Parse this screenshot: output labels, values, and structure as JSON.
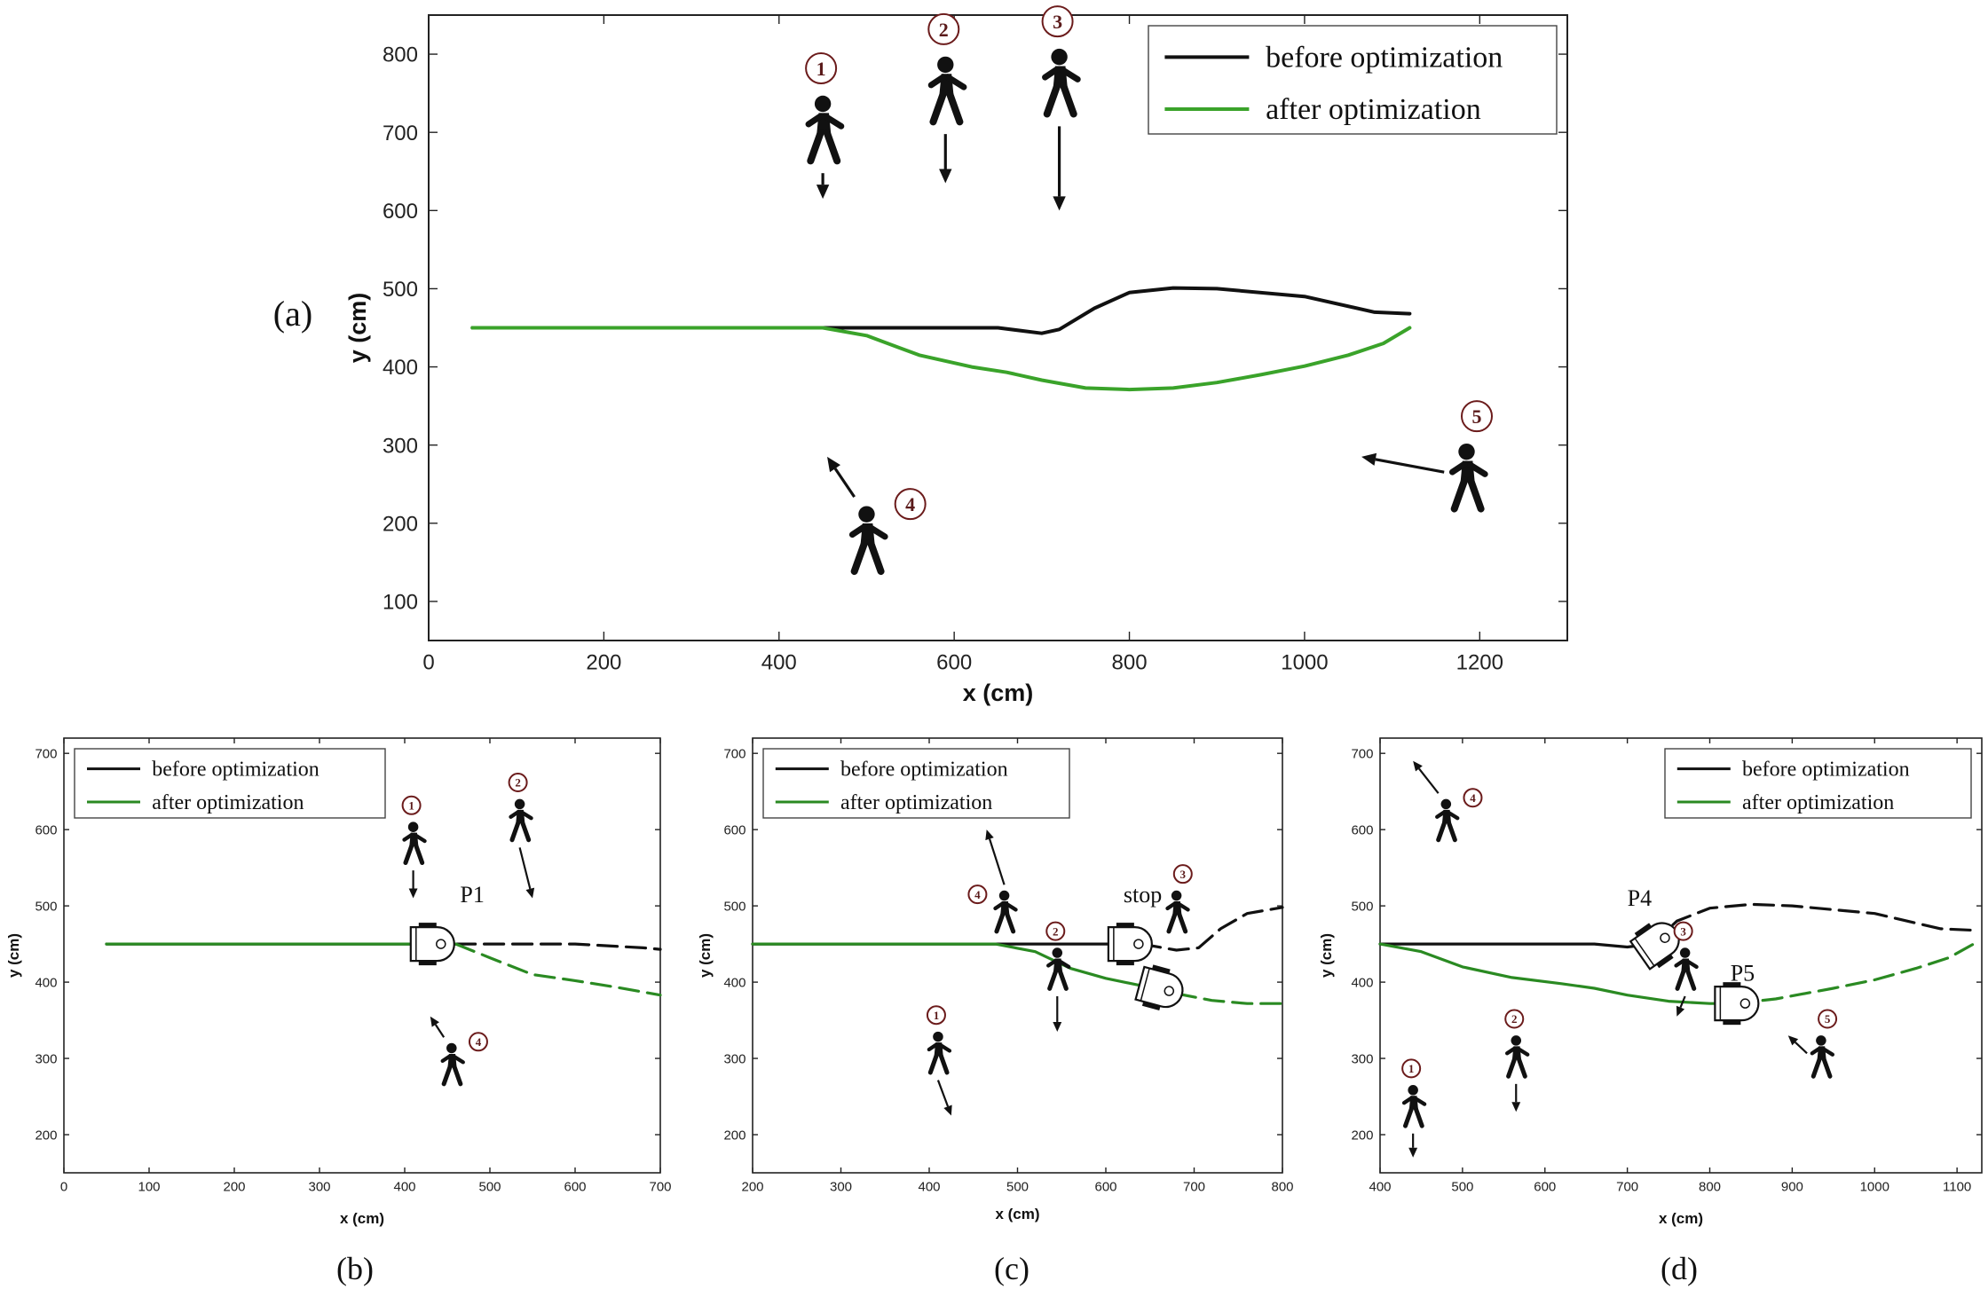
{
  "colors": {
    "before": "#111111",
    "after": "#3aa32a",
    "afterSmall": "#2a8a22",
    "marker": "#6b1b1b"
  },
  "chart_data": [
    {
      "id": "a",
      "panel_label": "(a)",
      "type": "line",
      "xlabel": "x (cm)",
      "ylabel": "y (cm)",
      "xlim": [
        0,
        1300
      ],
      "ylim": [
        50,
        850
      ],
      "xticks": [
        0,
        200,
        400,
        600,
        800,
        1000,
        1200
      ],
      "yticks": [
        100,
        200,
        300,
        400,
        500,
        600,
        700,
        800
      ],
      "legend": {
        "position": "top-right"
      },
      "series": [
        {
          "name": "before optimization",
          "color_key": "before",
          "segments": [
            {
              "style": "solid",
              "points": [
                [
                  50,
                  450
                ],
                [
                  450,
                  450
                ],
                [
                  650,
                  450
                ],
                [
                  700,
                  443
                ],
                [
                  720,
                  448
                ],
                [
                  760,
                  475
                ],
                [
                  800,
                  495
                ],
                [
                  850,
                  501
                ],
                [
                  900,
                  500
                ],
                [
                  1000,
                  490
                ],
                [
                  1080,
                  470
                ],
                [
                  1120,
                  468
                ]
              ]
            }
          ]
        },
        {
          "name": "after optimization",
          "color_key": "after",
          "segments": [
            {
              "style": "solid",
              "points": [
                [
                  50,
                  450
                ],
                [
                  450,
                  450
                ],
                [
                  500,
                  440
                ],
                [
                  560,
                  415
                ],
                [
                  620,
                  400
                ],
                [
                  660,
                  393
                ],
                [
                  700,
                  383
                ],
                [
                  750,
                  373
                ],
                [
                  800,
                  371
                ],
                [
                  850,
                  373
                ],
                [
                  900,
                  380
                ],
                [
                  950,
                  390
                ],
                [
                  1000,
                  401
                ],
                [
                  1050,
                  415
                ],
                [
                  1090,
                  430
                ],
                [
                  1120,
                  450
                ]
              ]
            }
          ]
        }
      ],
      "pedestrians": [
        {
          "id": "1",
          "x": 450,
          "y": 700,
          "arrow_to": [
            450,
            615
          ]
        },
        {
          "id": "2",
          "x": 590,
          "y": 750,
          "arrow_to": [
            590,
            635
          ]
        },
        {
          "id": "3",
          "x": 720,
          "y": 760,
          "arrow_to": [
            720,
            600
          ]
        },
        {
          "id": "4",
          "x": 500,
          "y": 175,
          "arrow_to": [
            455,
            285
          ],
          "label_side": "right"
        },
        {
          "id": "5",
          "x": 1185,
          "y": 255,
          "arrow_to": [
            1065,
            285
          ],
          "label_side": "top"
        }
      ],
      "robots": [],
      "annotations": []
    },
    {
      "id": "b",
      "panel_label": "(b)",
      "type": "line",
      "xlabel": "x (cm)",
      "ylabel": "y (cm)",
      "xlim": [
        0,
        700
      ],
      "ylim": [
        150,
        720
      ],
      "xticks": [
        0,
        100,
        200,
        300,
        400,
        500,
        600,
        700
      ],
      "yticks": [
        200,
        300,
        400,
        500,
        600,
        700
      ],
      "legend": {
        "position": "top-left"
      },
      "series": [
        {
          "name": "before optimization",
          "color_key": "before",
          "segments": [
            {
              "style": "solid",
              "points": [
                [
                  50,
                  450
                ],
                [
                  460,
                  450
                ]
              ]
            },
            {
              "style": "dashed",
              "points": [
                [
                  460,
                  450
                ],
                [
                  600,
                  450
                ],
                [
                  680,
                  445
                ],
                [
                  700,
                  443
                ]
              ]
            }
          ]
        },
        {
          "name": "after optimization",
          "color_key": "afterSmall",
          "segments": [
            {
              "style": "solid",
              "points": [
                [
                  50,
                  450
                ],
                [
                  460,
                  450
                ]
              ]
            },
            {
              "style": "dashed",
              "points": [
                [
                  460,
                  450
                ],
                [
                  500,
                  432
                ],
                [
                  550,
                  410
                ],
                [
                  600,
                  402
                ],
                [
                  650,
                  393
                ],
                [
                  700,
                  383
                ]
              ]
            }
          ]
        }
      ],
      "pedestrians": [
        {
          "id": "1",
          "x": 410,
          "y": 580,
          "arrow_to": [
            410,
            510
          ]
        },
        {
          "id": "2",
          "x": 535,
          "y": 610,
          "arrow_to": [
            550,
            510
          ]
        },
        {
          "id": "4",
          "x": 455,
          "y": 290,
          "arrow_to": [
            430,
            355
          ],
          "label_side": "right"
        }
      ],
      "robots": [
        {
          "x": 430,
          "y": 450,
          "angle": 0
        }
      ],
      "annotations": [
        {
          "text": "P1",
          "x": 465,
          "y": 505
        }
      ]
    },
    {
      "id": "c",
      "panel_label": "(c)",
      "type": "line",
      "xlabel": "x (cm)",
      "ylabel": "y (cm)",
      "xlim": [
        200,
        800
      ],
      "ylim": [
        150,
        720
      ],
      "xticks": [
        200,
        300,
        400,
        500,
        600,
        700,
        800
      ],
      "yticks": [
        200,
        300,
        400,
        500,
        600,
        700
      ],
      "legend": {
        "position": "top-left"
      },
      "series": [
        {
          "name": "before optimization",
          "color_key": "before",
          "segments": [
            {
              "style": "solid",
              "points": [
                [
                  200,
                  450
                ],
                [
                  640,
                  450
                ]
              ]
            },
            {
              "style": "dashed",
              "points": [
                [
                  640,
                  450
                ],
                [
                  680,
                  442
                ],
                [
                  705,
                  445
                ],
                [
                  730,
                  470
                ],
                [
                  760,
                  490
                ],
                [
                  800,
                  498
                ]
              ]
            }
          ]
        },
        {
          "name": "after optimization",
          "color_key": "afterSmall",
          "segments": [
            {
              "style": "solid",
              "points": [
                [
                  200,
                  450
                ],
                [
                  475,
                  450
                ],
                [
                  520,
                  440
                ],
                [
                  560,
                  418
                ],
                [
                  600,
                  405
                ],
                [
                  650,
                  393
                ],
                [
                  680,
                  385
                ]
              ]
            },
            {
              "style": "dashed",
              "points": [
                [
                  680,
                  385
                ],
                [
                  720,
                  376
                ],
                [
                  760,
                  372
                ],
                [
                  800,
                  372
                ]
              ]
            }
          ]
        }
      ],
      "pedestrians": [
        {
          "id": "1",
          "x": 410,
          "y": 305,
          "arrow_to": [
            425,
            225
          ]
        },
        {
          "id": "2",
          "x": 545,
          "y": 415,
          "arrow_to": [
            545,
            335
          ]
        },
        {
          "id": "3",
          "x": 680,
          "y": 490,
          "arrow_to": null,
          "label_side": "top"
        },
        {
          "id": "4",
          "x": 485,
          "y": 490,
          "arrow_to": [
            465,
            600
          ],
          "label_side": "left"
        }
      ],
      "robots": [
        {
          "x": 625,
          "y": 450,
          "angle": 0
        },
        {
          "x": 660,
          "y": 392,
          "angle": 15
        }
      ],
      "annotations": [
        {
          "text": "stop",
          "x": 620,
          "y": 505
        }
      ]
    },
    {
      "id": "d",
      "panel_label": "(d)",
      "type": "line",
      "xlabel": "x (cm)",
      "ylabel": "y (cm)",
      "xlim": [
        400,
        1130
      ],
      "ylim": [
        150,
        720
      ],
      "xticks": [
        400,
        500,
        600,
        700,
        800,
        900,
        1000,
        1100
      ],
      "yticks": [
        200,
        300,
        400,
        500,
        600,
        700
      ],
      "legend": {
        "position": "top-right"
      },
      "series": [
        {
          "name": "before optimization",
          "color_key": "before",
          "segments": [
            {
              "style": "solid",
              "points": [
                [
                  400,
                  450
                ],
                [
                  660,
                  450
                ],
                [
                  700,
                  446
                ],
                [
                  730,
                  450
                ]
              ]
            },
            {
              "style": "dashed",
              "points": [
                [
                  730,
                  450
                ],
                [
                  760,
                  480
                ],
                [
                  800,
                  497
                ],
                [
                  850,
                  502
                ],
                [
                  900,
                  500
                ],
                [
                  1000,
                  490
                ],
                [
                  1080,
                  470
                ],
                [
                  1120,
                  468
                ]
              ]
            }
          ]
        },
        {
          "name": "after optimization",
          "color_key": "afterSmall",
          "segments": [
            {
              "style": "solid",
              "points": [
                [
                  400,
                  450
                ],
                [
                  450,
                  440
                ],
                [
                  500,
                  420
                ],
                [
                  560,
                  406
                ],
                [
                  620,
                  398
                ],
                [
                  660,
                  392
                ],
                [
                  700,
                  383
                ],
                [
                  750,
                  375
                ],
                [
                  800,
                  372
                ],
                [
                  830,
                  372
                ]
              ]
            },
            {
              "style": "dashed",
              "points": [
                [
                  830,
                  372
                ],
                [
                  880,
                  378
                ],
                [
                  950,
                  392
                ],
                [
                  1000,
                  403
                ],
                [
                  1050,
                  418
                ],
                [
                  1090,
                  432
                ],
                [
                  1120,
                  450
                ]
              ]
            }
          ]
        }
      ],
      "pedestrians": [
        {
          "id": "1",
          "x": 440,
          "y": 235,
          "arrow_to": [
            440,
            170
          ]
        },
        {
          "id": "2",
          "x": 565,
          "y": 300,
          "arrow_to": [
            565,
            230
          ]
        },
        {
          "id": "3",
          "x": 770,
          "y": 415,
          "arrow_to": [
            760,
            355
          ]
        },
        {
          "id": "4",
          "x": 480,
          "y": 610,
          "arrow_to": [
            440,
            690
          ],
          "label_side": "right"
        },
        {
          "id": "5",
          "x": 935,
          "y": 300,
          "arrow_to": [
            895,
            330
          ],
          "label_side": "top"
        }
      ],
      "robots": [
        {
          "x": 735,
          "y": 450,
          "angle": -35
        },
        {
          "x": 830,
          "y": 372,
          "angle": 0
        }
      ],
      "annotations": [
        {
          "text": "P4",
          "x": 700,
          "y": 500
        },
        {
          "text": "P5",
          "x": 825,
          "y": 402
        }
      ]
    }
  ]
}
